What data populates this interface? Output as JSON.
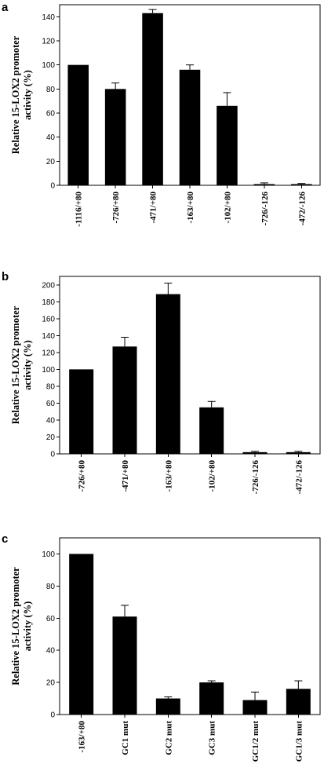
{
  "chart_data": [
    {
      "panel": "a",
      "type": "bar",
      "ylabel": [
        "Relative 15-LOX2 promoter",
        "activity (%)"
      ],
      "ylim": [
        0,
        150
      ],
      "yticks": [
        0,
        20,
        40,
        60,
        80,
        100,
        120,
        140
      ],
      "categories": [
        "-1116/+80",
        "-726/+80",
        "-471/+80",
        "-163/+80",
        "-102/+80",
        "-726/-126",
        "-472/-126"
      ],
      "values": [
        100,
        80,
        143,
        96,
        66,
        1,
        1
      ],
      "errors": [
        0,
        5,
        3,
        4,
        11,
        1,
        0.5
      ]
    },
    {
      "panel": "b",
      "type": "bar",
      "ylabel": [
        "Relative 15-LOX2 promoter",
        "activity (%)"
      ],
      "ylim": [
        0,
        210
      ],
      "yticks": [
        0,
        20,
        40,
        60,
        80,
        100,
        120,
        140,
        160,
        180,
        200
      ],
      "categories": [
        "-726/+80",
        "-471/+80",
        "-163/+80",
        "-102/+80",
        "-726/-126",
        "-472/-126"
      ],
      "values": [
        100,
        127,
        189,
        55,
        2,
        2
      ],
      "errors": [
        0,
        11,
        13,
        7,
        1,
        1
      ]
    },
    {
      "panel": "c",
      "type": "bar",
      "ylabel": [
        "Relative 15-LOX2 promoter",
        "activity (%)"
      ],
      "ylim": [
        0,
        110
      ],
      "yticks": [
        0,
        20,
        40,
        60,
        80,
        100
      ],
      "categories": [
        "-163/+80",
        "GC1 mut",
        "GC2 mut",
        "GC3 mut",
        "GC1/2 mut",
        "GC1/3 mut"
      ],
      "values": [
        100,
        61,
        10,
        20,
        9,
        16
      ],
      "errors": [
        0,
        7,
        1,
        1,
        5,
        5
      ]
    }
  ]
}
